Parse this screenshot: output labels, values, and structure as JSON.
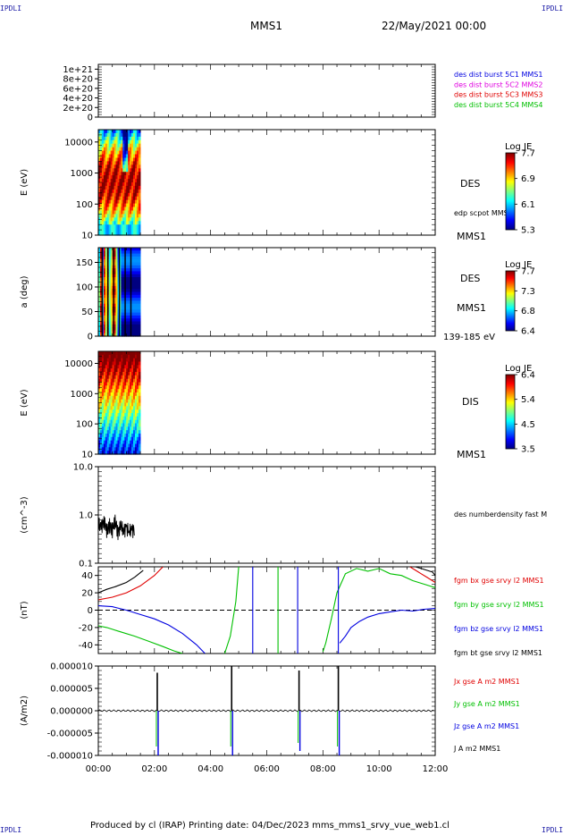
{
  "corners": {
    "top_left": "IPDLI",
    "top_right": "IPDLI",
    "bottom_left": "IPDLI",
    "bottom_right": "IPDLI"
  },
  "header": {
    "spacecraft": "MMS1",
    "date": "22/May/2021 00:00"
  },
  "footer": {
    "text": "Produced by cl (IRAP)   Printing date: 04/Dec/2023   mms_mms1_srvy_vue_web1.cl"
  },
  "colors": {
    "red": "#e00000",
    "green": "#00c000",
    "blue": "#0000e0",
    "black": "#000000",
    "magenta": "#e000e0"
  },
  "chart_data": [
    {
      "type": "line",
      "panel": "des dist burst",
      "ylabel": "",
      "yticks": [
        "0",
        "2e+20",
        "4e+20",
        "6e+20",
        "8e+20",
        "1e+21"
      ],
      "ylim": [
        0,
        1.1e+21
      ],
      "legend": [
        {
          "label": "des dist burst 5C1 MMS1",
          "color": "#0000e0"
        },
        {
          "label": "des dist burst 5C2 MMS2",
          "color": "#e000e0"
        },
        {
          "label": "des dist burst 5C3 MMS3",
          "color": "#e00000"
        },
        {
          "label": "des dist burst 5C4 MMS4",
          "color": "#00c000"
        }
      ]
    },
    {
      "type": "heatmap",
      "panel": "DES energy spectrogram",
      "ylabel": "E (eV)",
      "yscale": "log",
      "yticks": [
        "10",
        "100",
        "1000",
        "10000"
      ],
      "side_labels": [
        "DES",
        "edp scpot MMS1",
        "MMS1"
      ],
      "colorbar": {
        "title": "Log JE",
        "ticks": [
          "7.7",
          "6.9",
          "6.1",
          "5.3"
        ]
      },
      "data_extent_hours": [
        0,
        1.3
      ]
    },
    {
      "type": "heatmap",
      "panel": "DES pitch angle",
      "ylabel": "a (deg)",
      "yticks": [
        "0",
        "50",
        "100",
        "150"
      ],
      "ylim": [
        0,
        180
      ],
      "side_labels": [
        "DES",
        "MMS1",
        "139-185 eV"
      ],
      "colorbar": {
        "title": "Log JE",
        "ticks": [
          "7.7",
          "7.3",
          "6.8",
          "6.4"
        ]
      },
      "data_extent_hours": [
        0,
        1.3
      ]
    },
    {
      "type": "heatmap",
      "panel": "DIS energy spectrogram",
      "ylabel": "E (eV)",
      "yscale": "log",
      "yticks": [
        "10",
        "100",
        "1000",
        "10000"
      ],
      "side_labels": [
        "DIS",
        "MMS1"
      ],
      "colorbar": {
        "title": "Log JE",
        "ticks": [
          "6.4",
          "5.4",
          "4.5",
          "3.5"
        ]
      },
      "data_extent_hours": [
        0,
        1.3
      ]
    },
    {
      "type": "line",
      "panel": "density",
      "ylabel": "(cm^-3)",
      "yscale": "log",
      "yticks": [
        "0.1",
        "1.0",
        "10.0"
      ],
      "ylim": [
        0.1,
        10
      ],
      "legend": [
        {
          "label": "des numberdensity fast M",
          "color": "#000000"
        }
      ],
      "series": [
        {
          "name": "des numberdensity fast M",
          "x_hours": [
            0.0,
            0.1,
            0.2,
            0.3,
            0.4,
            0.5,
            0.6,
            0.7,
            0.8,
            0.9,
            1.0,
            1.1,
            1.2,
            1.3
          ],
          "values": [
            0.7,
            0.55,
            0.8,
            0.45,
            0.65,
            0.5,
            0.75,
            0.45,
            0.6,
            0.5,
            0.55,
            0.48,
            0.5,
            0.52
          ]
        }
      ]
    },
    {
      "type": "line",
      "panel": "fgm",
      "ylabel": "(nT)",
      "yticks": [
        "-40",
        "-20",
        "0",
        "20",
        "40"
      ],
      "ylim": [
        -50,
        50
      ],
      "zero_line": true,
      "legend": [
        {
          "label": "fgm bx gse srvy l2 MMS1",
          "color": "#e00000"
        },
        {
          "label": "fgm by gse srvy l2 MMS1",
          "color": "#00c000"
        },
        {
          "label": "fgm bz gse srvy l2 MMS1",
          "color": "#0000e0"
        },
        {
          "label": "fgm bt gse srvy l2 MMS1",
          "color": "#000000"
        }
      ],
      "series": [
        {
          "name": "fgm bx gse srvy l2 MMS1",
          "color": "#e00000",
          "segments": [
            {
              "x": [
                0,
                0.5,
                1.0,
                1.5,
                2.0,
                2.3
              ],
              "y": [
                12,
                15,
                20,
                28,
                40,
                50
              ]
            },
            {
              "x": [
                11.1,
                11.3,
                11.5,
                11.7,
                12.0
              ],
              "y": [
                50,
                46,
                42,
                38,
                32
              ]
            }
          ]
        },
        {
          "name": "fgm by gse srvy l2 MMS1",
          "color": "#00c000",
          "segments": [
            {
              "x": [
                0,
                0.3,
                0.8,
                1.3,
                1.8,
                2.3,
                2.7,
                3.0
              ],
              "y": [
                -18,
                -20,
                -25,
                -30,
                -36,
                -42,
                -47,
                -50
              ]
            },
            {
              "x": [
                4.5,
                4.7,
                4.9,
                5.0
              ],
              "y": [
                -50,
                -30,
                10,
                50
              ]
            },
            {
              "x": [
                6.4,
                6.4
              ],
              "y": [
                -50,
                50
              ]
            },
            {
              "x": [
                8.0,
                8.1,
                8.3,
                8.5,
                8.8,
                9.2,
                9.6,
                10.0,
                10.4,
                10.8,
                11.2,
                11.6,
                12.0
              ],
              "y": [
                -48,
                -38,
                -10,
                20,
                42,
                48,
                45,
                48,
                42,
                40,
                34,
                30,
                26
              ]
            }
          ]
        },
        {
          "name": "fgm bz gse srvy l2 MMS1",
          "color": "#0000e0",
          "segments": [
            {
              "x": [
                0,
                0.5,
                1.0,
                1.5,
                2.0,
                2.5,
                3.0,
                3.5,
                3.8
              ],
              "y": [
                5,
                4,
                0,
                -5,
                -10,
                -17,
                -27,
                -40,
                -50
              ]
            },
            {
              "x": [
                5.5,
                5.5
              ],
              "y": [
                50,
                -50
              ]
            },
            {
              "x": [
                7.1,
                7.1
              ],
              "y": [
                50,
                -50
              ]
            },
            {
              "x": [
                8.55,
                8.55
              ],
              "y": [
                50,
                -50
              ]
            },
            {
              "x": [
                8.6,
                8.8,
                9.0,
                9.3,
                9.6,
                10.0,
                10.4,
                10.8,
                11.2,
                11.6,
                12.0
              ],
              "y": [
                -38,
                -30,
                -20,
                -13,
                -8,
                -4,
                -2,
                0,
                -1,
                1,
                2
              ]
            }
          ]
        },
        {
          "name": "fgm bt gse srvy l2 MMS1",
          "color": "#000000",
          "segments": [
            {
              "x": [
                0,
                0.3,
                0.6,
                1.0,
                1.3,
                1.6
              ],
              "y": [
                20,
                24,
                27,
                32,
                38,
                46
              ]
            },
            {
              "x": [
                11.3,
                11.5,
                11.7,
                11.9,
                12.0
              ],
              "y": [
                50,
                48,
                46,
                44,
                40
              ]
            }
          ]
        }
      ]
    },
    {
      "type": "line",
      "panel": "current",
      "ylabel": "(A/m2)",
      "yticks": [
        "-0.000010",
        "-0.000005",
        "0.000000",
        "0.000005",
        "0.000010"
      ],
      "ylim": [
        -1e-05,
        1e-05
      ],
      "xticks": [
        "00:00",
        "02:00",
        "04:00",
        "06:00",
        "08:00",
        "10:00",
        "12:00"
      ],
      "xlim_hours": [
        0,
        12
      ],
      "legend": [
        {
          "label": "Jx gse A m2 MMS1",
          "color": "#e00000"
        },
        {
          "label": "Jy gse A m2 MMS1",
          "color": "#00c000"
        },
        {
          "label": "Jz gse A m2 MMS1",
          "color": "#0000e0"
        },
        {
          "label": "J A m2 MMS1",
          "color": "#000000"
        }
      ],
      "spikes": [
        {
          "x_hour": 2.1,
          "J": 8.5e-06,
          "Jz": -1e-05
        },
        {
          "x_hour": 4.75,
          "J": 1e-05,
          "Jz": -1e-05
        },
        {
          "x_hour": 7.15,
          "J": 9e-06,
          "Jz": -9e-06
        },
        {
          "x_hour": 8.55,
          "J": 1e-05,
          "Jz": -1e-05
        }
      ]
    }
  ]
}
